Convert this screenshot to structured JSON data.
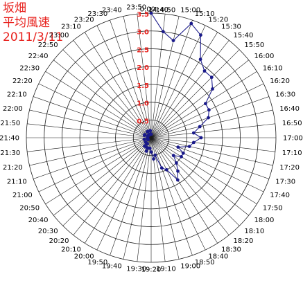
{
  "title_lines": [
    "坂畑",
    "平均風速",
    "2011/3/11"
  ],
  "colors": {
    "title": "#e8221e",
    "radial_labels": "#e8221e",
    "grid": "#1c1c1c",
    "series": "#1a1a8a",
    "time_labels": "#000000"
  },
  "chart_data": {
    "type": "polar-line",
    "title": "坂畑 平均風速 2011/3/11",
    "radial_axis": {
      "min": 0,
      "max": 3.5,
      "tick_labels": [
        "0.5",
        "1.0",
        "1.5",
        "2.0",
        "2.5",
        "3.0",
        "3.5"
      ],
      "tick_values": [
        0.5,
        1.0,
        1.5,
        2.0,
        2.5,
        3.0,
        3.5
      ]
    },
    "angular_axis": {
      "direction": "clockwise",
      "start_at_top": "14:40",
      "labels": [
        "14:40",
        "14:50",
        "15:00",
        "15:10",
        "15:20",
        "15:30",
        "15:40",
        "15:50",
        "16:00",
        "16:10",
        "16:20",
        "16:30",
        "16:40",
        "16:50",
        "17:00",
        "17:10",
        "17:20",
        "17:30",
        "17:40",
        "17:50",
        "18:00",
        "18:10",
        "18:20",
        "18:30",
        "18:40",
        "18:50",
        "19:00",
        "19:10",
        "19:20",
        "19:30",
        "19:40",
        "19:50",
        "20:00",
        "20:10",
        "20:20",
        "20:30",
        "20:40",
        "20:50",
        "21:00",
        "21:10",
        "21:20",
        "21:30",
        "21:40",
        "21:50",
        "22:00",
        "22:10",
        "22:20",
        "22:30",
        "22:40",
        "22:50",
        "23:00",
        "23:10",
        "23:20",
        "23:30",
        "23:40",
        "23:50",
        "0:00"
      ]
    },
    "series": [
      {
        "values": [
          3.5,
          3.0,
          2.8,
          3.4,
          3.2,
          2.6,
          2.4,
          2.4,
          2.2,
          1.8,
          1.8,
          1.7,
          1.4,
          1.2,
          1.4,
          1.2,
          1.1,
          0.8,
          1.0,
          1.0,
          0.8,
          1.0,
          1.2,
          1.4,
          1.0,
          0.9,
          0.5,
          0.6,
          0.4,
          0.3,
          0.3,
          0.4,
          0.3,
          0.2,
          0.3,
          0.2,
          0.2,
          0.1,
          0.1,
          0.1,
          0.2,
          0.1,
          0.1,
          0.1,
          0.1,
          0.2,
          0.2,
          0.1,
          0.1,
          0.1,
          0.1,
          0.2,
          0.2,
          0.1,
          0.1,
          0.2,
          0.1
        ]
      }
    ]
  }
}
